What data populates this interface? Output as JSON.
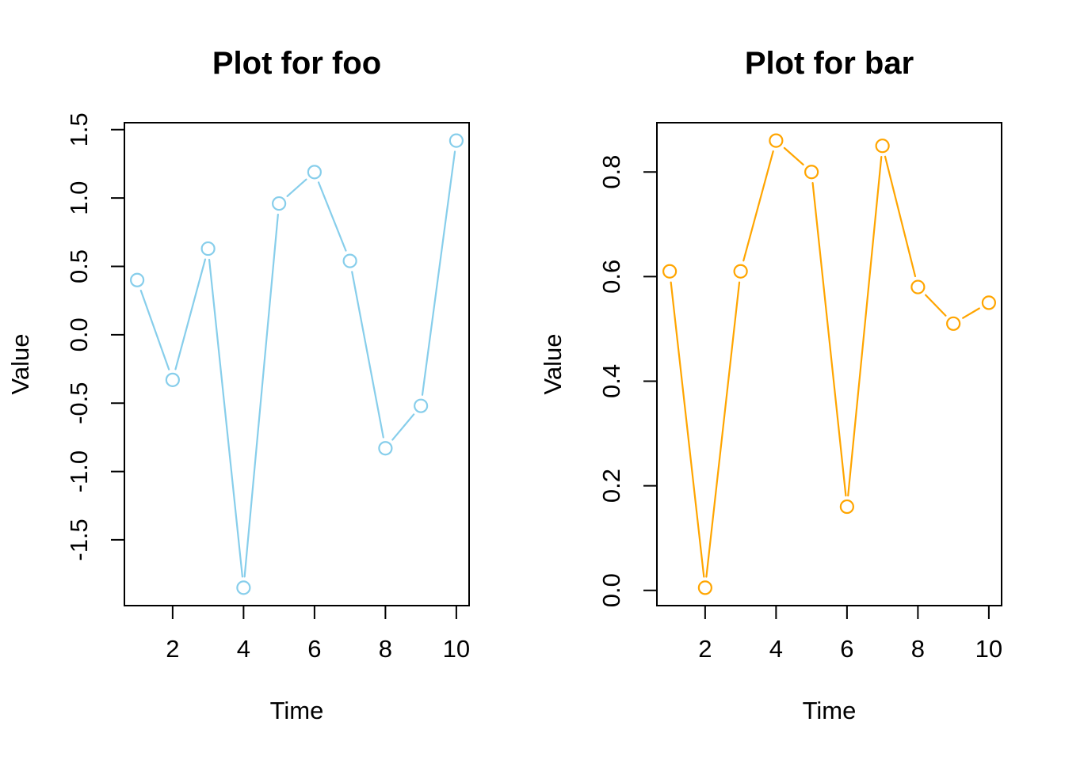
{
  "page": {
    "background": "#ffffff",
    "text_color": "#000000"
  },
  "chart_data": [
    {
      "type": "line",
      "title": "Plot for foo",
      "xlabel": "Time",
      "ylabel": "Value",
      "x": [
        1,
        2,
        3,
        4,
        5,
        6,
        7,
        8,
        9,
        10
      ],
      "values": [
        0.4,
        -0.33,
        0.63,
        -1.85,
        0.96,
        1.19,
        0.54,
        -0.83,
        -0.52,
        1.42
      ],
      "x_ticks": [
        2,
        4,
        6,
        8,
        10
      ],
      "x_tick_labels": [
        "2",
        "4",
        "6",
        "8",
        "10"
      ],
      "y_ticks": [
        -1.5,
        -1.0,
        -0.5,
        0.0,
        0.5,
        1.0,
        1.5
      ],
      "y_tick_labels": [
        "-1.5",
        "-1.0",
        "-0.5",
        "0.0",
        "0.5",
        "1.0",
        "1.5"
      ],
      "xlim": [
        0.64,
        10.36
      ],
      "ylim": [
        -1.981,
        1.551
      ],
      "color": "#87CEEB",
      "marker": "open-circle",
      "line_type": "segments-with-gaps-at-points",
      "grid": false,
      "legend": null
    },
    {
      "type": "line",
      "title": "Plot for bar",
      "xlabel": "Time",
      "ylabel": "Value",
      "x": [
        1,
        2,
        3,
        4,
        5,
        6,
        7,
        8,
        9,
        10
      ],
      "values": [
        0.61,
        0.005,
        0.61,
        0.86,
        0.8,
        0.16,
        0.85,
        0.58,
        0.51,
        0.55
      ],
      "x_ticks": [
        2,
        4,
        6,
        8,
        10
      ],
      "x_tick_labels": [
        "2",
        "4",
        "6",
        "8",
        "10"
      ],
      "y_ticks": [
        0.0,
        0.2,
        0.4,
        0.6,
        0.8
      ],
      "y_tick_labels": [
        "0.0",
        "0.2",
        "0.4",
        "0.6",
        "0.8"
      ],
      "xlim": [
        0.64,
        10.36
      ],
      "ylim": [
        -0.0292,
        0.8942
      ],
      "color": "#FFA500",
      "marker": "open-circle",
      "line_type": "segments-with-gaps-at-points",
      "grid": false,
      "legend": null
    }
  ]
}
